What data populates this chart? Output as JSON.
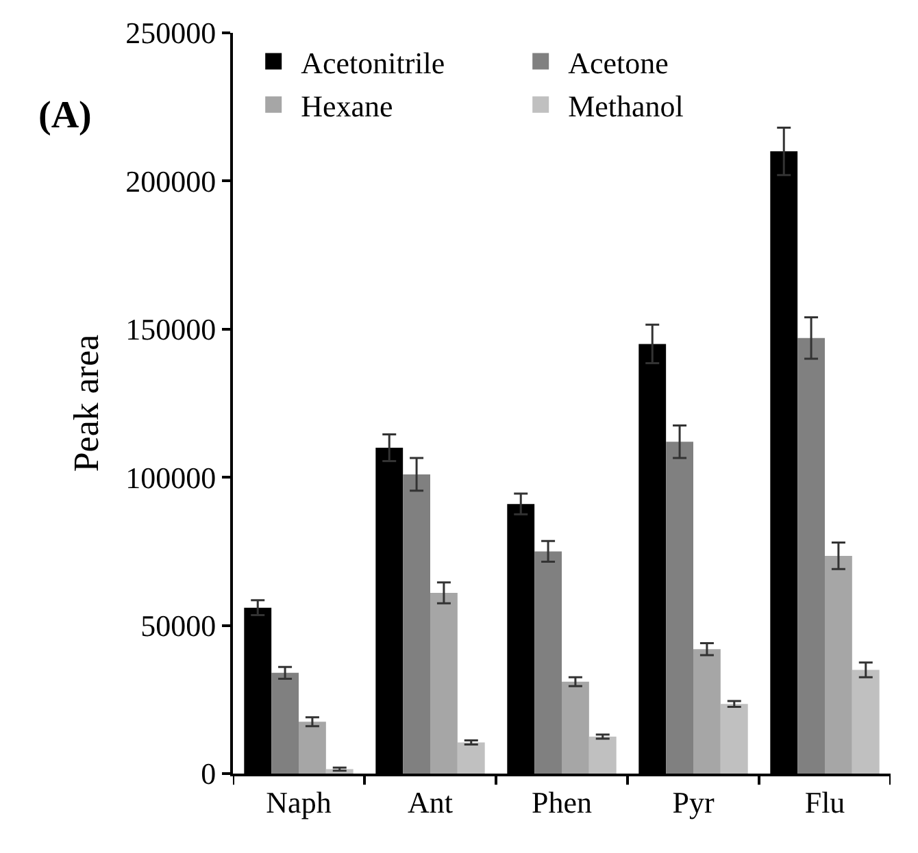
{
  "chart_data": {
    "type": "bar",
    "title": "(A)",
    "ylabel": "Peak area",
    "categories": [
      "Naph",
      "Ant",
      "Phen",
      "Pyr",
      "Flu"
    ],
    "series": [
      {
        "name": "Acetonitrile",
        "color": "#000000",
        "values": [
          56000,
          110000,
          91000,
          145000,
          210000
        ],
        "errors": [
          2500,
          4500,
          3500,
          6500,
          8000
        ]
      },
      {
        "name": "Acetone",
        "color": "#808080",
        "values": [
          34000,
          101000,
          75000,
          112000,
          147000
        ],
        "errors": [
          2000,
          5500,
          3500,
          5500,
          7000
        ]
      },
      {
        "name": "Hexane",
        "color": "#a6a6a6",
        "values": [
          17500,
          61000,
          31000,
          42000,
          73500
        ],
        "errors": [
          1500,
          3500,
          1500,
          2000,
          4500
        ]
      },
      {
        "name": "Methanol",
        "color": "#c0c0c0",
        "values": [
          1500,
          10500,
          12500,
          23500,
          35000
        ],
        "errors": [
          500,
          700,
          700,
          1000,
          2500
        ]
      }
    ],
    "ylim": [
      0,
      250000
    ],
    "yticks": [
      0,
      50000,
      100000,
      150000,
      200000,
      250000
    ],
    "legend": "top"
  }
}
